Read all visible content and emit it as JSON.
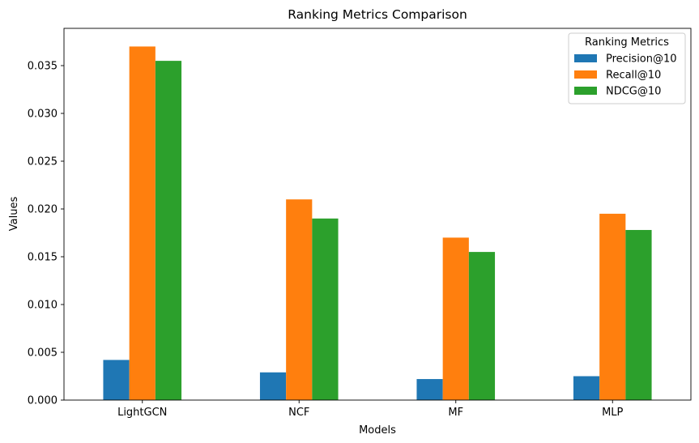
{
  "chart_data": {
    "type": "bar",
    "title": "Ranking Metrics Comparison",
    "xlabel": "Models",
    "ylabel": "Values",
    "categories": [
      "LightGCN",
      "NCF",
      "MF",
      "MLP"
    ],
    "series": [
      {
        "name": "Precision@10",
        "color": "#1f77b4",
        "values": [
          0.0042,
          0.0029,
          0.0022,
          0.0025
        ]
      },
      {
        "name": "Recall@10",
        "color": "#ff7f0e",
        "values": [
          0.037,
          0.021,
          0.017,
          0.0195
        ]
      },
      {
        "name": "NDCG@10",
        "color": "#2ca02c",
        "values": [
          0.0355,
          0.019,
          0.0155,
          0.0178
        ]
      }
    ],
    "ylim": [
      0,
      0.0389
    ],
    "yticks": [
      0.0,
      0.005,
      0.01,
      0.015,
      0.02,
      0.025,
      0.03,
      0.035
    ],
    "ytick_labels": [
      "0.000",
      "0.005",
      "0.010",
      "0.015",
      "0.020",
      "0.025",
      "0.030",
      "0.035"
    ],
    "legend": {
      "title": "Ranking Metrics",
      "position": "top-right"
    },
    "grid": false
  }
}
